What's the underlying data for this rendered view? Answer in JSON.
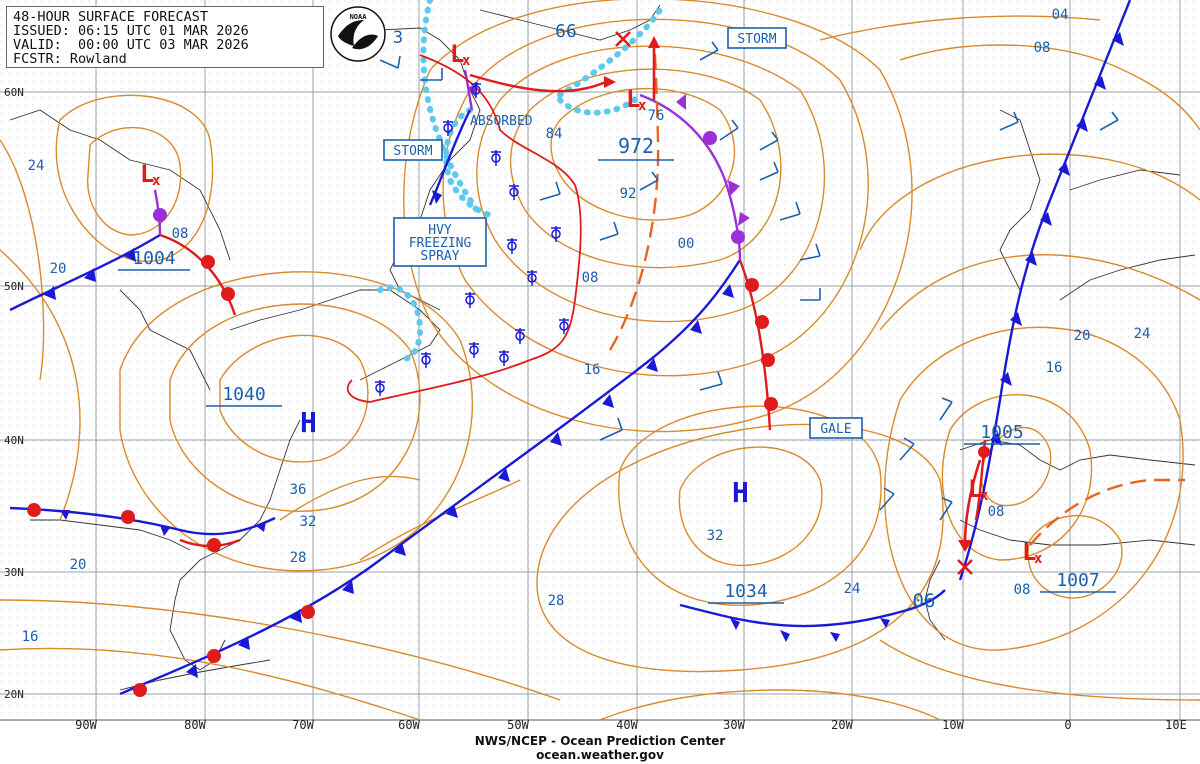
{
  "header": {
    "line1": "48-HOUR SURFACE FORECAST",
    "line2": "ISSUED: 06:15 UTC 01 MAR 2026",
    "line3": "VALID:  00:00 UTC 03 MAR 2026",
    "line4": "FCSTR: Rowland",
    "logo_text": "NOAA"
  },
  "footer": {
    "line1": "NWS/NCEP - Ocean Prediction Center",
    "line2": "ocean.weather.gov"
  },
  "colors": {
    "isobar": "#d98a2b",
    "cold_front": "#1a1ad6",
    "warm_front": "#e01b1b",
    "occluded": "#9b2fd8",
    "ice_edge": "#5fc8ef",
    "trough": "#e86420",
    "label": "#1b5fae",
    "grid": "#9aa0a6"
  },
  "lat_labels": [
    "60N",
    "50N",
    "40N",
    "30N",
    "20N"
  ],
  "lon_labels": [
    "90W",
    "80W",
    "70W",
    "60W",
    "50W",
    "40W",
    "30W",
    "20W",
    "10W",
    "0",
    "10E"
  ],
  "pressure_centers": [
    {
      "type": "L",
      "value": "1004"
    },
    {
      "type": "L",
      "value": "972"
    },
    {
      "type": "L",
      "value": ""
    },
    {
      "type": "L",
      "value": ""
    },
    {
      "type": "L",
      "value": "1005"
    },
    {
      "type": "L",
      "value": "1007"
    },
    {
      "type": "H",
      "value": "1040"
    },
    {
      "type": "H",
      "value": "1034"
    }
  ],
  "warnings": [
    "STORM",
    "STORM",
    "GALE",
    "HVY FREEZING SPRAY"
  ],
  "annotations": {
    "absorbed": "ABSORBED",
    "isobar_labels": [
      "3",
      "66",
      "04",
      "08",
      "24",
      "84",
      "76",
      "92",
      "00",
      "08",
      "16",
      "20",
      "24",
      "16",
      "20",
      "36",
      "32",
      "28",
      "20",
      "16",
      "32",
      "28",
      "24",
      "08",
      "08",
      "06",
      "08"
    ]
  }
}
